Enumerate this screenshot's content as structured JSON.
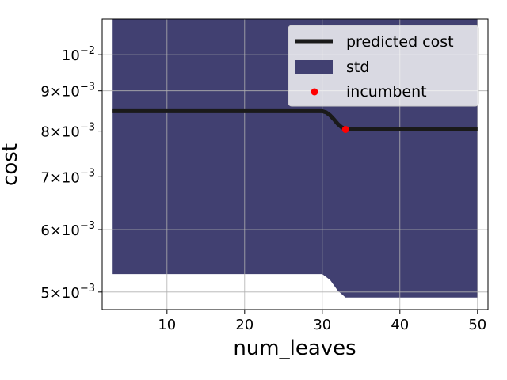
{
  "chart_data": {
    "type": "line",
    "title": "",
    "xlabel": "num_leaves",
    "ylabel": "cost",
    "xlim": [
      1.65,
      51.35
    ],
    "ylim": [
      0.00475,
      0.0111
    ],
    "yscale": "log",
    "grid": true,
    "legend_position": "top-right",
    "x_ticks": [
      {
        "value": 10,
        "label": "10"
      },
      {
        "value": 20,
        "label": "20"
      },
      {
        "value": 30,
        "label": "30"
      },
      {
        "value": 40,
        "label": "40"
      },
      {
        "value": 50,
        "label": "50"
      }
    ],
    "y_ticks": [
      {
        "value": 0.005,
        "mantissa": "5",
        "base": "10",
        "exp": "−3"
      },
      {
        "value": 0.006,
        "mantissa": "6",
        "base": "10",
        "exp": "−3"
      },
      {
        "value": 0.007,
        "mantissa": "7",
        "base": "10",
        "exp": "−3"
      },
      {
        "value": 0.008,
        "mantissa": "8",
        "base": "10",
        "exp": "−3"
      },
      {
        "value": 0.009,
        "mantissa": "9",
        "base": "10",
        "exp": "−3"
      },
      {
        "value": 0.01,
        "mantissa": "",
        "base": "10",
        "exp": "−2"
      }
    ],
    "series": [
      {
        "name": "predicted cost",
        "color": "#1a1a1a",
        "x": [
          3,
          10,
          20,
          30,
          30.5,
          31,
          31.5,
          32,
          32.5,
          33,
          33.5,
          34,
          40,
          50
        ],
        "y": [
          0.00848,
          0.00848,
          0.00848,
          0.00848,
          0.00845,
          0.00838,
          0.00828,
          0.00817,
          0.00809,
          0.00805,
          0.00804,
          0.00804,
          0.00804,
          0.00804
        ]
      }
    ],
    "band": {
      "name": "std",
      "color": "#414071",
      "x": [
        3,
        30,
        31,
        32,
        33,
        34,
        40,
        50
      ],
      "lower": [
        0.00527,
        0.00527,
        0.00518,
        0.00502,
        0.00492,
        0.00492,
        0.00492,
        0.00492
      ],
      "upper": [
        0.0125,
        0.0125,
        0.0118,
        0.0113,
        0.0111,
        0.0111,
        0.0111,
        0.0111
      ]
    },
    "incumbent": {
      "name": "incumbent",
      "color": "#ff0000",
      "x": 33,
      "y": 0.00804
    }
  }
}
